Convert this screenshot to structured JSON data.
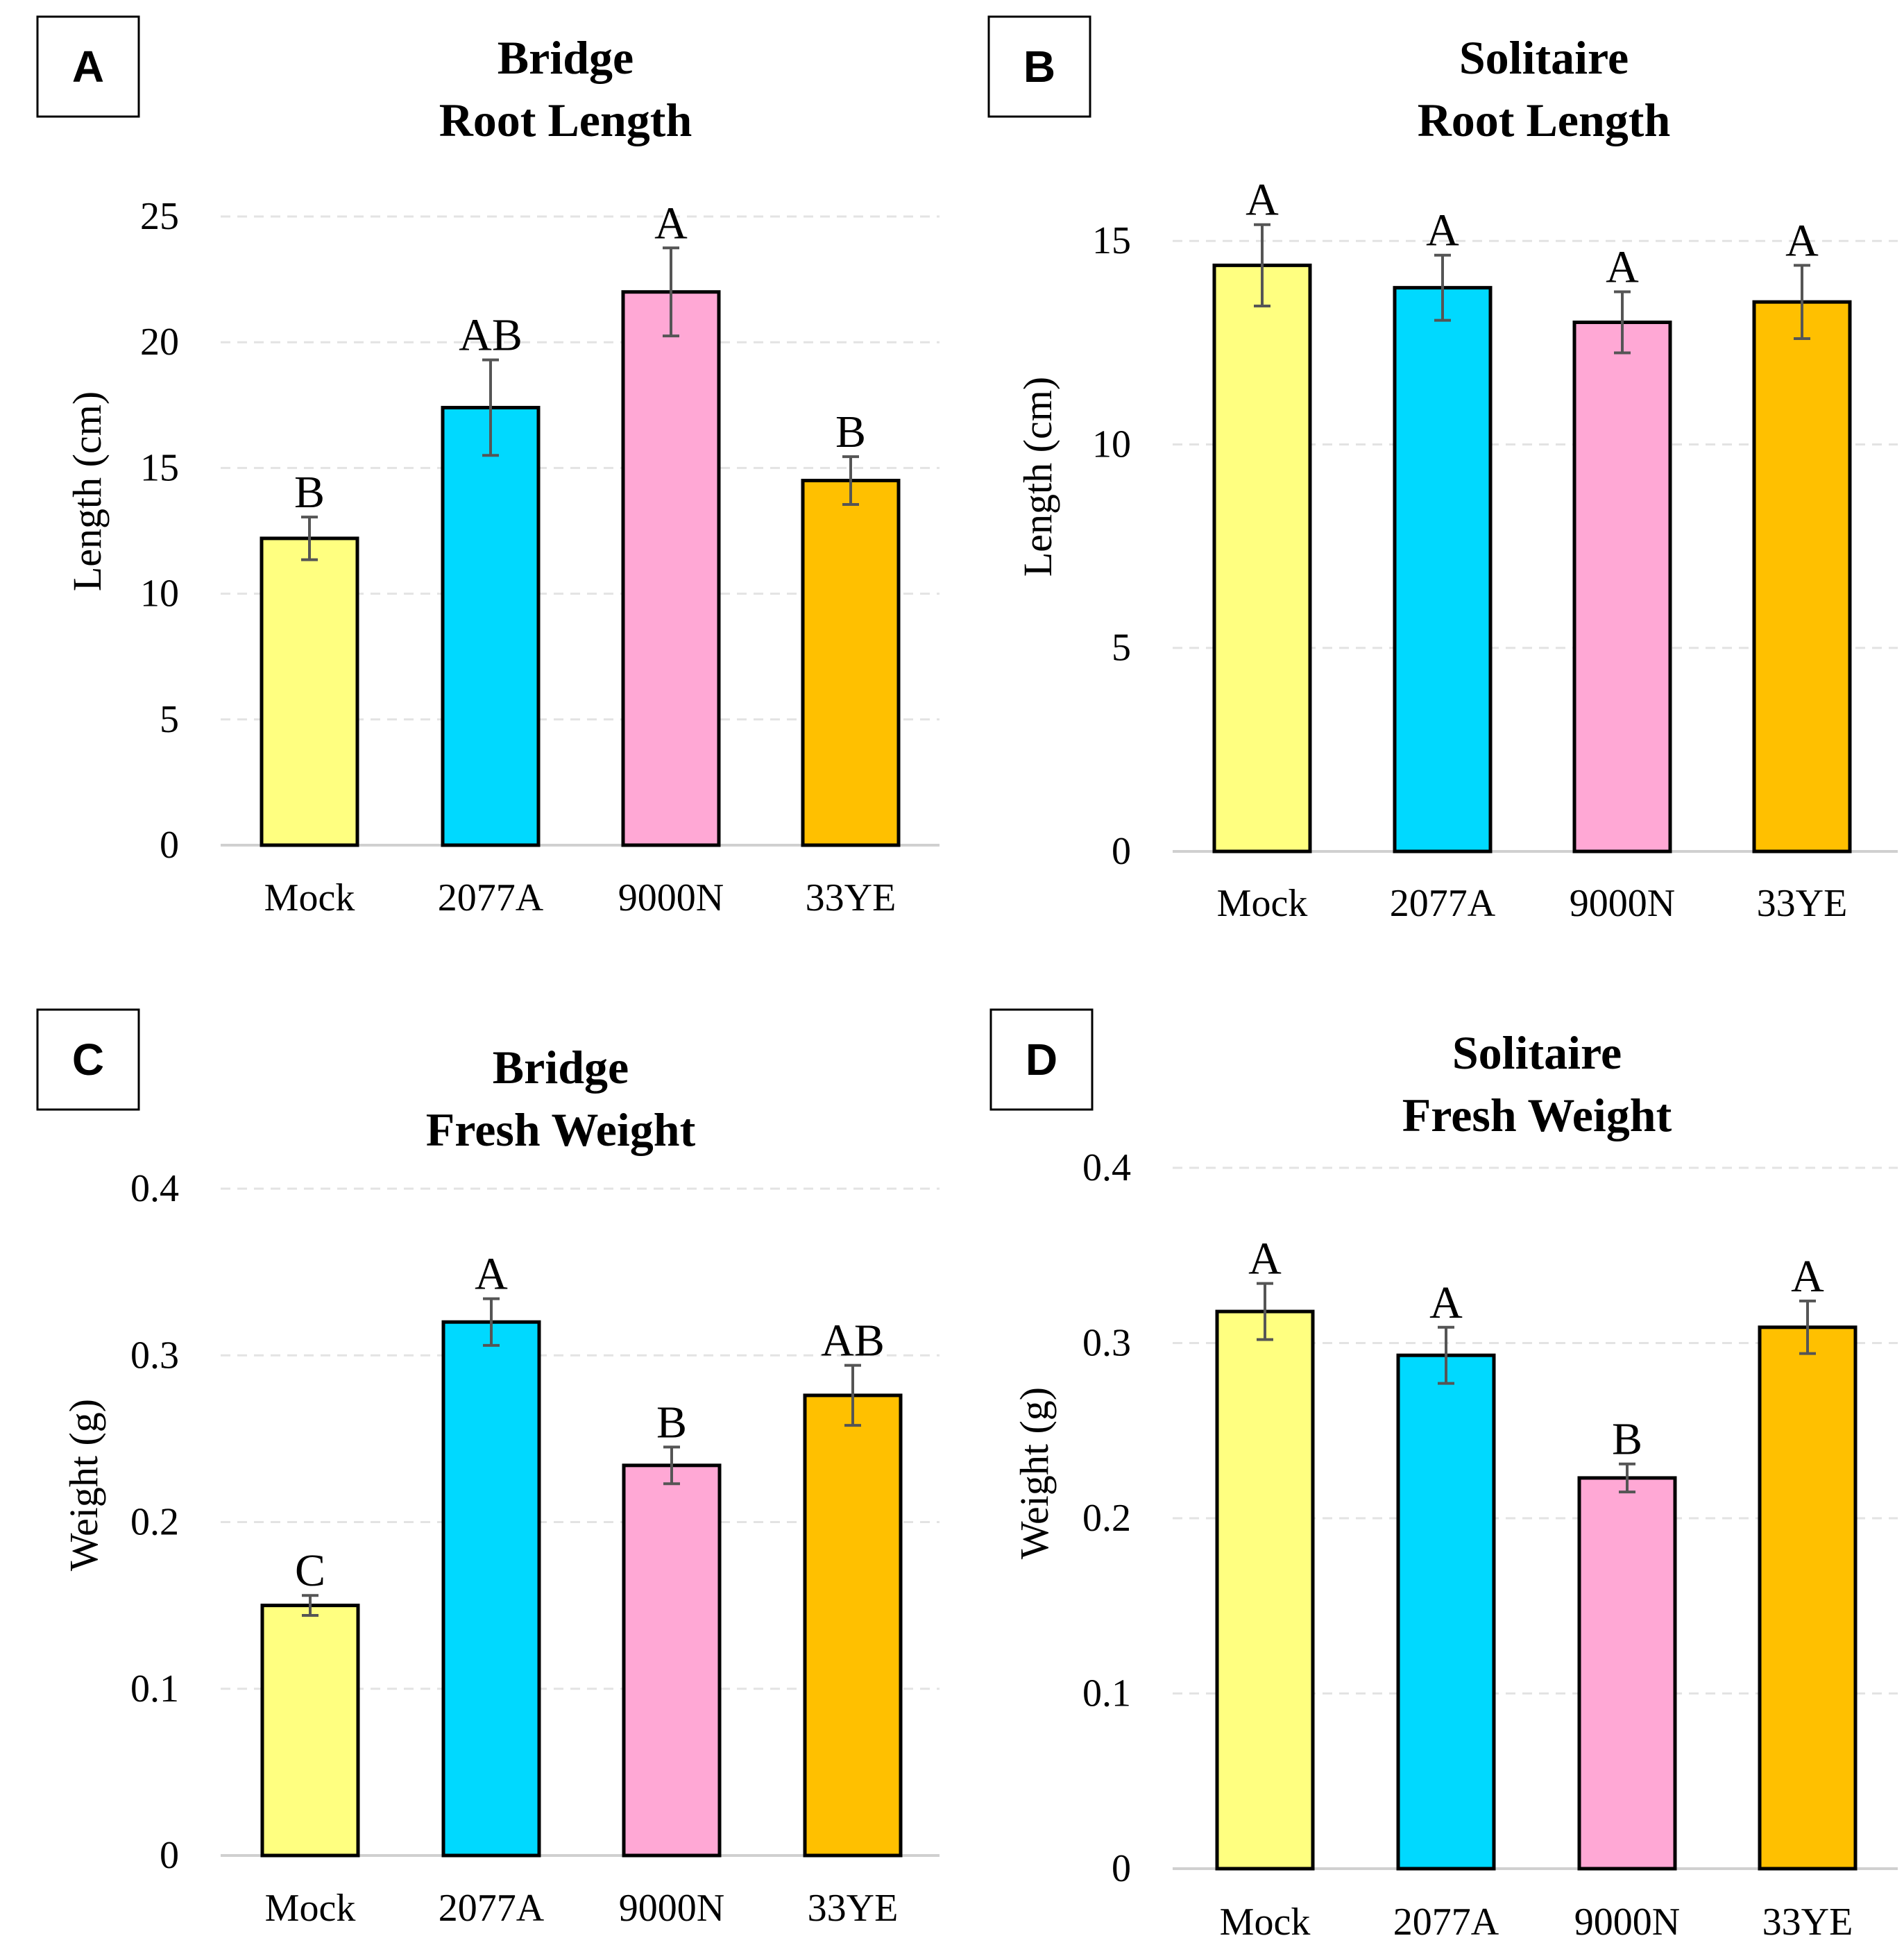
{
  "chart_data": [
    {
      "panel": "A",
      "type": "bar",
      "title": [
        "Bridge",
        "Root Length"
      ],
      "ylabel": "Length (cm)",
      "xlabel": "",
      "categories": [
        "Mock",
        "2077A",
        "9000N",
        "33YE"
      ],
      "values": [
        12.2,
        17.4,
        22.0,
        14.5
      ],
      "errors": [
        0.85,
        1.9,
        1.75,
        0.95
      ],
      "letters": [
        "B",
        "AB",
        "A",
        "B"
      ],
      "colors": [
        "#ffff80",
        "#00d9ff",
        "#ffa8d5",
        "#ffc000"
      ],
      "ylim": [
        0,
        25
      ],
      "yticks": [
        0,
        5,
        10,
        15,
        20,
        25
      ],
      "ytick_labels": [
        "0",
        "5",
        "10",
        "15",
        "20",
        "25"
      ],
      "grid": true
    },
    {
      "panel": "B",
      "type": "bar",
      "title": [
        "Solitaire",
        "Root Length"
      ],
      "ylabel": "Length (cm)",
      "xlabel": "",
      "categories": [
        "Mock",
        "2077A",
        "9000N",
        "33YE"
      ],
      "values": [
        14.4,
        13.85,
        13.0,
        13.5
      ],
      "errors": [
        1.0,
        0.8,
        0.75,
        0.9
      ],
      "letters": [
        "A",
        "A",
        "A",
        "A"
      ],
      "colors": [
        "#ffff80",
        "#00d9ff",
        "#ffa8d5",
        "#ffc000"
      ],
      "ylim": [
        0,
        15.6
      ],
      "yticks": [
        0,
        5,
        10,
        15
      ],
      "ytick_labels": [
        "0",
        "5",
        "10",
        "15"
      ],
      "grid": true
    },
    {
      "panel": "C",
      "type": "bar",
      "title": [
        "Bridge",
        "Fresh Weight"
      ],
      "ylabel": "Weight (g)",
      "xlabel": "",
      "categories": [
        "Mock",
        "2077A",
        "9000N",
        "33YE"
      ],
      "values": [
        0.15,
        0.32,
        0.234,
        0.276
      ],
      "errors": [
        0.006,
        0.014,
        0.011,
        0.018
      ],
      "letters": [
        "C",
        "A",
        "B",
        "AB"
      ],
      "colors": [
        "#ffff80",
        "#00d9ff",
        "#ffa8d5",
        "#ffc000"
      ],
      "ylim": [
        0,
        0.4
      ],
      "yticks": [
        0,
        0.1,
        0.2,
        0.3,
        0.4
      ],
      "ytick_labels": [
        "0",
        "0.1",
        "0.2",
        "0.3",
        "0.4"
      ],
      "grid": true
    },
    {
      "panel": "D",
      "type": "bar",
      "title": [
        "Solitaire",
        "Fresh Weight"
      ],
      "ylabel": "Weight (g)",
      "xlabel": "",
      "categories": [
        "Mock",
        "2077A",
        "9000N",
        "33YE"
      ],
      "values": [
        0.318,
        0.293,
        0.223,
        0.309
      ],
      "errors": [
        0.016,
        0.016,
        0.008,
        0.015
      ],
      "letters": [
        "A",
        "A",
        "B",
        "A"
      ],
      "colors": [
        "#ffff80",
        "#00d9ff",
        "#ffa8d5",
        "#ffc000"
      ],
      "ylim": [
        0,
        0.4
      ],
      "yticks": [
        0,
        0.1,
        0.2,
        0.3,
        0.4
      ],
      "ytick_labels": [
        "0",
        "0.1",
        "0.2",
        "0.3",
        "0.4"
      ],
      "grid": true
    }
  ]
}
